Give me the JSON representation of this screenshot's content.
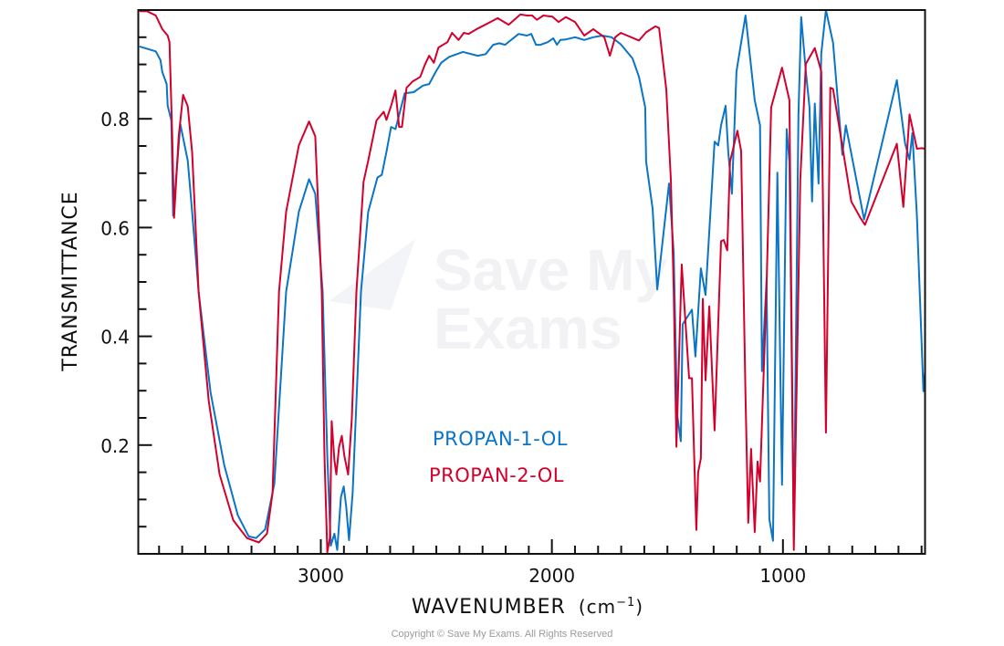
{
  "chart_data": {
    "type": "line",
    "title": "",
    "xlabel": "WAVENUMBER",
    "xlabel_unit": "(cm",
    "xlabel_unit_sup": "−1",
    "xlabel_close": ")",
    "ylabel": "TRANSMITTANCE",
    "xlim": [
      3790,
      385
    ],
    "ylim": [
      0,
      1.0
    ],
    "x_reversed": true,
    "x_ticks": [
      "3000",
      "2000",
      "1000"
    ],
    "x_tick_values": [
      3000,
      2000,
      1000
    ],
    "x_minor_tick_step": 100,
    "y_ticks": [
      "0.2",
      "0.4",
      "0.6",
      "0.8"
    ],
    "y_tick_values": [
      0.2,
      0.4,
      0.6,
      0.8
    ],
    "y_minor_tick_step": 0.05,
    "grid": false,
    "legend_placement": "center-bottom",
    "series": [
      {
        "name": "PROPAN-1-OL",
        "color": "#0a74c6",
        "points": [
          [
            3785,
            0.933
          ],
          [
            3714,
            0.924
          ],
          [
            3694,
            0.908
          ],
          [
            3686,
            0.886
          ],
          [
            3667,
            0.864
          ],
          [
            3663,
            0.824
          ],
          [
            3647,
            0.797
          ],
          [
            3639,
            0.622
          ],
          [
            3608,
            0.79
          ],
          [
            3576,
            0.723
          ],
          [
            3557,
            0.629
          ],
          [
            3529,
            0.482
          ],
          [
            3477,
            0.297
          ],
          [
            3418,
            0.163
          ],
          [
            3359,
            0.071
          ],
          [
            3312,
            0.032
          ],
          [
            3280,
            0.029
          ],
          [
            3241,
            0.045
          ],
          [
            3201,
            0.129
          ],
          [
            3150,
            0.482
          ],
          [
            3095,
            0.629
          ],
          [
            3051,
            0.689
          ],
          [
            3024,
            0.662
          ],
          [
            2992,
            0.482
          ],
          [
            2972,
            0.18
          ],
          [
            2957,
            0.015
          ],
          [
            2941,
            0.037
          ],
          [
            2929,
            0.007
          ],
          [
            2913,
            0.104
          ],
          [
            2901,
            0.124
          ],
          [
            2890,
            0.087
          ],
          [
            2878,
            0.025
          ],
          [
            2862,
            0.113
          ],
          [
            2826,
            0.482
          ],
          [
            2795,
            0.629
          ],
          [
            2755,
            0.692
          ],
          [
            2736,
            0.697
          ],
          [
            2716,
            0.739
          ],
          [
            2696,
            0.785
          ],
          [
            2677,
            0.781
          ],
          [
            2661,
            0.807
          ],
          [
            2637,
            0.847
          ],
          [
            2598,
            0.849
          ],
          [
            2558,
            0.861
          ],
          [
            2531,
            0.864
          ],
          [
            2503,
            0.886
          ],
          [
            2479,
            0.903
          ],
          [
            2444,
            0.914
          ],
          [
            2385,
            0.923
          ],
          [
            2321,
            0.916
          ],
          [
            2286,
            0.919
          ],
          [
            2254,
            0.936
          ],
          [
            2227,
            0.939
          ],
          [
            2203,
            0.936
          ],
          [
            2144,
            0.956
          ],
          [
            2108,
            0.953
          ],
          [
            2089,
            0.956
          ],
          [
            2069,
            0.936
          ],
          [
            2049,
            0.936
          ],
          [
            2018,
            0.941
          ],
          [
            1994,
            0.948
          ],
          [
            1978,
            0.936
          ],
          [
            1963,
            0.945
          ],
          [
            1939,
            0.946
          ],
          [
            1900,
            0.95
          ],
          [
            1860,
            0.945
          ],
          [
            1821,
            0.95
          ],
          [
            1781,
            0.953
          ],
          [
            1742,
            0.95
          ],
          [
            1702,
            0.937
          ],
          [
            1651,
            0.911
          ],
          [
            1623,
            0.877
          ],
          [
            1596,
            0.821
          ],
          [
            1592,
            0.721
          ],
          [
            1564,
            0.635
          ],
          [
            1544,
            0.486
          ],
          [
            1493,
            0.681
          ],
          [
            1473,
            0.555
          ],
          [
            1458,
            0.256
          ],
          [
            1442,
            0.207
          ],
          [
            1434,
            0.422
          ],
          [
            1394,
            0.449
          ],
          [
            1379,
            0.363
          ],
          [
            1355,
            0.525
          ],
          [
            1335,
            0.476
          ],
          [
            1296,
            0.758
          ],
          [
            1280,
            0.751
          ],
          [
            1268,
            0.788
          ],
          [
            1248,
            0.824
          ],
          [
            1237,
            0.741
          ],
          [
            1221,
            0.662
          ],
          [
            1201,
            0.887
          ],
          [
            1162,
            0.99
          ],
          [
            1122,
            0.834
          ],
          [
            1099,
            0.788
          ],
          [
            1091,
            0.336
          ],
          [
            1071,
            0.502
          ],
          [
            1059,
            0.064
          ],
          [
            1043,
            0.024
          ],
          [
            1024,
            0.701
          ],
          [
            1004,
            0.127
          ],
          [
            984,
            0.781
          ],
          [
            972,
            0.721
          ],
          [
            953,
            0.03
          ],
          [
            933,
            0.808
          ],
          [
            921,
            0.987
          ],
          [
            901,
            0.887
          ],
          [
            885,
            0.821
          ],
          [
            874,
            0.648
          ],
          [
            862,
            0.828
          ],
          [
            846,
            0.681
          ],
          [
            834,
            0.92
          ],
          [
            814,
            1.0
          ],
          [
            783,
            0.94
          ],
          [
            743,
            0.734
          ],
          [
            728,
            0.788
          ],
          [
            649,
            0.615
          ],
          [
            507,
            0.871
          ],
          [
            471,
            0.754
          ],
          [
            452,
            0.725
          ],
          [
            440,
            0.774
          ],
          [
            420,
            0.621
          ],
          [
            392,
            0.299
          ],
          [
            385,
            0.336
          ]
        ]
      },
      {
        "name": "PROPAN-2-OL",
        "color": "#d4002c",
        "points": [
          [
            3785,
            0.998
          ],
          [
            3753,
            0.998
          ],
          [
            3714,
            0.99
          ],
          [
            3686,
            0.965
          ],
          [
            3663,
            0.953
          ],
          [
            3655,
            0.941
          ],
          [
            3643,
            0.768
          ],
          [
            3635,
            0.618
          ],
          [
            3615,
            0.768
          ],
          [
            3596,
            0.844
          ],
          [
            3576,
            0.823
          ],
          [
            3557,
            0.739
          ],
          [
            3529,
            0.482
          ],
          [
            3485,
            0.281
          ],
          [
            3438,
            0.146
          ],
          [
            3379,
            0.062
          ],
          [
            3320,
            0.029
          ],
          [
            3268,
            0.021
          ],
          [
            3233,
            0.037
          ],
          [
            3209,
            0.112
          ],
          [
            3181,
            0.482
          ],
          [
            3150,
            0.629
          ],
          [
            3095,
            0.751
          ],
          [
            3051,
            0.795
          ],
          [
            3024,
            0.768
          ],
          [
            2996,
            0.482
          ],
          [
            2984,
            0.18
          ],
          [
            2972,
            0.003
          ],
          [
            2961,
            0.029
          ],
          [
            2953,
            0.244
          ],
          [
            2941,
            0.172
          ],
          [
            2933,
            0.146
          ],
          [
            2921,
            0.197
          ],
          [
            2909,
            0.217
          ],
          [
            2898,
            0.18
          ],
          [
            2882,
            0.146
          ],
          [
            2866,
            0.247
          ],
          [
            2846,
            0.482
          ],
          [
            2815,
            0.684
          ],
          [
            2795,
            0.723
          ],
          [
            2759,
            0.797
          ],
          [
            2728,
            0.813
          ],
          [
            2716,
            0.798
          ],
          [
            2696,
            0.824
          ],
          [
            2677,
            0.852
          ],
          [
            2661,
            0.785
          ],
          [
            2649,
            0.785
          ],
          [
            2629,
            0.857
          ],
          [
            2602,
            0.869
          ],
          [
            2570,
            0.877
          ],
          [
            2550,
            0.899
          ],
          [
            2531,
            0.916
          ],
          [
            2511,
            0.903
          ],
          [
            2491,
            0.931
          ],
          [
            2452,
            0.941
          ],
          [
            2432,
            0.958
          ],
          [
            2404,
            0.945
          ],
          [
            2381,
            0.958
          ],
          [
            2361,
            0.956
          ],
          [
            2321,
            0.966
          ],
          [
            2266,
            0.978
          ],
          [
            2235,
            0.985
          ],
          [
            2187,
            0.973
          ],
          [
            2136,
            0.992
          ],
          [
            2108,
            0.99
          ],
          [
            2085,
            0.99
          ],
          [
            2065,
            0.982
          ],
          [
            2037,
            0.99
          ],
          [
            1998,
            0.988
          ],
          [
            1971,
            0.978
          ],
          [
            1939,
            0.987
          ],
          [
            1900,
            0.978
          ],
          [
            1860,
            0.953
          ],
          [
            1821,
            0.965
          ],
          [
            1773,
            0.95
          ],
          [
            1749,
            0.916
          ],
          [
            1726,
            0.95
          ],
          [
            1702,
            0.958
          ],
          [
            1623,
            0.944
          ],
          [
            1592,
            0.959
          ],
          [
            1552,
            0.97
          ],
          [
            1536,
            0.967
          ],
          [
            1505,
            0.854
          ],
          [
            1485,
            0.688
          ],
          [
            1473,
            0.489
          ],
          [
            1461,
            0.197
          ],
          [
            1438,
            0.532
          ],
          [
            1406,
            0.323
          ],
          [
            1394,
            0.323
          ],
          [
            1375,
            0.044
          ],
          [
            1367,
            0.15
          ],
          [
            1355,
            0.176
          ],
          [
            1347,
            0.469
          ],
          [
            1335,
            0.319
          ],
          [
            1319,
            0.455
          ],
          [
            1296,
            0.227
          ],
          [
            1268,
            0.575
          ],
          [
            1256,
            0.577
          ],
          [
            1241,
            0.558
          ],
          [
            1229,
            0.721
          ],
          [
            1197,
            0.778
          ],
          [
            1181,
            0.741
          ],
          [
            1162,
            0.289
          ],
          [
            1150,
            0.057
          ],
          [
            1138,
            0.193
          ],
          [
            1122,
            0.04
          ],
          [
            1110,
            0.17
          ],
          [
            1099,
            0.133
          ],
          [
            1071,
            0.489
          ],
          [
            1051,
            0.821
          ],
          [
            1004,
            0.894
          ],
          [
            972,
            0.834
          ],
          [
            953,
            0.007
          ],
          [
            925,
            0.688
          ],
          [
            901,
            0.901
          ],
          [
            862,
            0.93
          ],
          [
            834,
            0.887
          ],
          [
            814,
            0.223
          ],
          [
            795,
            0.857
          ],
          [
            783,
            0.855
          ],
          [
            704,
            0.648
          ],
          [
            665,
            0.618
          ],
          [
            645,
            0.605
          ],
          [
            507,
            0.754
          ],
          [
            479,
            0.638
          ],
          [
            452,
            0.808
          ],
          [
            420,
            0.745
          ],
          [
            400,
            0.746
          ],
          [
            385,
            0.745
          ]
        ]
      }
    ]
  },
  "legend": {
    "items": [
      {
        "label": "PROPAN-1-OL",
        "color": "#0a74c6"
      },
      {
        "label": "PROPAN-2-OL",
        "color": "#d4002c"
      }
    ]
  },
  "watermark": {
    "line1": "Save My",
    "line2": "Exams"
  },
  "copyright": "Copyright © Save My Exams. All Rights Reserved"
}
